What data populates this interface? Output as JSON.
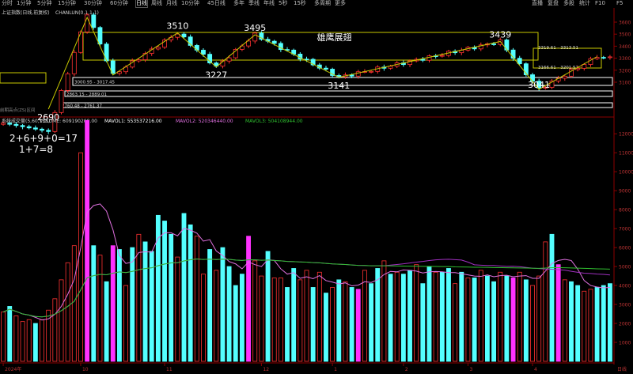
{
  "toolbar": {
    "items": [
      "分时",
      "1分钟",
      "5分钟",
      "15分钟",
      "30分钟",
      "60分钟",
      "日线",
      "周线",
      "月线",
      "10分钟",
      "45日线",
      "多年",
      "季线",
      "年线",
      "5秒",
      "15秒",
      "多周期",
      "更多"
    ],
    "active_index": 6,
    "right_items": [
      "直播",
      "复盘",
      "多股",
      "统计",
      "F10",
      "F5"
    ]
  },
  "chart_data": [
    {
      "type": "candlestick",
      "title": "上证指数(日线,前复权)",
      "indicator_label": "CHANLUN(0,1,1,1)",
      "y_ticks": [
        3600,
        3500,
        3400,
        3300,
        3200,
        3100
      ],
      "ylim": [
        2650,
        3600
      ],
      "pivots": [
        {
          "index": 7,
          "value": 2690,
          "label": "2690"
        },
        {
          "index": 13,
          "value": 3674,
          "label": ""
        },
        {
          "index": 17,
          "value": 3160,
          "label": ""
        },
        {
          "index": 27,
          "value": 3510,
          "label": "3510"
        },
        {
          "index": 33,
          "value": 3227,
          "label": "3227"
        },
        {
          "index": 39,
          "value": 3495,
          "label": "3495"
        },
        {
          "index": 52,
          "value": 3141,
          "label": "3141"
        },
        {
          "index": 77,
          "value": 3439,
          "label": "3439"
        },
        {
          "index": 83,
          "value": 3041,
          "label": "3041"
        },
        {
          "index": 92,
          "value": 3313,
          "label": ""
        }
      ],
      "center_boxes": [
        {
          "start": 13,
          "end": 85,
          "low": 3227,
          "high": 3495,
          "label": "雄鹰展翅"
        },
        {
          "start": 84,
          "end": 93,
          "low": 3201.57,
          "high": 3313.51,
          "top_label": "3319.61 - 3313.51",
          "bottom_label": "3166.61 - 3201.57"
        },
        {
          "start": -3,
          "end": 7,
          "low": 3080,
          "high": 3150,
          "top_label": "",
          "bottom_label": ""
        }
      ],
      "zone_lines": [
        {
          "low": 3000.95,
          "high": 3017.45,
          "label": "3000.95 - 3017.45"
        },
        {
          "low": 2863.15,
          "high": 2889.01,
          "label": "2863.15 - 2889.01"
        },
        {
          "low": 2760.48,
          "high": 2761.37,
          "label": "2760.48 - 2761.37"
        }
      ],
      "left_note": "前期高点(ZS)区间"
    },
    {
      "type": "bar",
      "title": "VOL",
      "header": {
        "name": "系统成交量(5,60,135)",
        "vol": "VOLUME: 609190208.00",
        "mavol1": "MAVOL1: 553537216.00",
        "mavol2": "MAVOL2: 520346440.00",
        "mavol3": "MAVOL3: 504108944.00"
      },
      "y_ticks": [
        12000,
        11000,
        10000,
        9000,
        8000,
        7000,
        6000,
        5000,
        4000,
        3000,
        2000,
        1000
      ],
      "ylim": [
        0,
        12800
      ],
      "values": [
        2600,
        2900,
        2400,
        2100,
        2200,
        2000,
        2200,
        2700,
        3300,
        4300,
        5200,
        6100,
        11000,
        12700,
        6100,
        5600,
        4200,
        6100,
        5900,
        4000,
        6000,
        6700,
        6300,
        5800,
        7700,
        7400,
        6700,
        5500,
        7800,
        7200,
        6600,
        4600,
        5900,
        4800,
        6000,
        5000,
        4000,
        4600,
        6600,
        5300,
        4500,
        5800,
        4400,
        4400,
        3900,
        4900,
        4300,
        4800,
        3900,
        4700,
        3600,
        3900,
        4300,
        4200,
        3900,
        3800,
        4800,
        4100,
        4900,
        5300,
        4600,
        4700,
        4600,
        4800,
        5100,
        4100,
        5000,
        4700,
        4700,
        4900,
        4100,
        4700,
        4400,
        4400,
        4800,
        4500,
        4200,
        4700,
        4500,
        4400,
        4700,
        4300,
        4000,
        4500,
        6300,
        6700,
        5100,
        4300,
        4200,
        4000,
        3700,
        3800,
        3900,
        4000,
        4100
      ],
      "colors": [
        "r",
        "c",
        "r",
        "r",
        "r",
        "c",
        "r",
        "r",
        "r",
        "r",
        "r",
        "r",
        "r",
        "m",
        "c",
        "r",
        "c",
        "m",
        "c",
        "r",
        "c",
        "r",
        "c",
        "c",
        "c",
        "c",
        "c",
        "r",
        "c",
        "c",
        "r",
        "r",
        "c",
        "r",
        "c",
        "c",
        "c",
        "c",
        "m",
        "r",
        "r",
        "c",
        "r",
        "r",
        "c",
        "c",
        "r",
        "r",
        "c",
        "r",
        "c",
        "r",
        "c",
        "r",
        "c",
        "m",
        "r",
        "c",
        "c",
        "r",
        "c",
        "r",
        "c",
        "c",
        "r",
        "c",
        "c",
        "r",
        "c",
        "c",
        "r",
        "c",
        "r",
        "c",
        "r",
        "c",
        "c",
        "r",
        "c",
        "m",
        "r",
        "c",
        "r",
        "r",
        "r",
        "c",
        "m",
        "r",
        "c",
        "c",
        "r",
        "r",
        "c",
        "c",
        "c"
      ],
      "ma_series": [
        {
          "name": "MAVOL1",
          "color": "#e070e0"
        },
        {
          "name": "MAVOL2",
          "color": "#a030c0"
        },
        {
          "name": "MAVOL3",
          "color": "#30c030"
        }
      ]
    }
  ],
  "x_labels": [
    "2024年",
    "10",
    "11",
    "12",
    "1",
    "2",
    "3",
    "4"
  ],
  "x_label_index": [
    0,
    12,
    25,
    40,
    51,
    62,
    72,
    82
  ],
  "bottom_right": "日线",
  "annotations": {
    "formula_line1": "2+6+9+0=17",
    "formula_line2": "1+7=8"
  },
  "colors": {
    "up": "#ff3232",
    "down": "#54ffff",
    "magenta": "#ff32ff",
    "axis": "#8b0000",
    "box": "#c8c800",
    "label": "#ffffff"
  }
}
